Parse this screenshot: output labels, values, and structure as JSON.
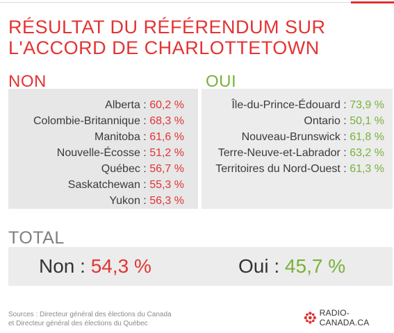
{
  "chart_data": {
    "type": "table",
    "title": "RÉSULTAT DU RÉFÉRENDUM SUR L'ACCORD DE CHARLOTTETOWN",
    "title_lines": [
      "RÉSULTAT DU RÉFÉRENDUM SUR",
      "L'ACCORD DE CHARLOTTETOWN"
    ],
    "groups": [
      {
        "name": "NON",
        "color": "#e33333",
        "rows": [
          {
            "province": "Alberta",
            "value": "60,2 %"
          },
          {
            "province": "Colombie-Britannique",
            "value": "68,3 %"
          },
          {
            "province": "Manitoba",
            "value": "61,6 %"
          },
          {
            "province": "Nouvelle-Écosse",
            "value": "51,2 %"
          },
          {
            "province": "Québec",
            "value": "56,7 %"
          },
          {
            "province": "Saskatchewan",
            "value": "55,3 %"
          },
          {
            "province": "Yukon",
            "value": "56,3 %"
          }
        ]
      },
      {
        "name": "OUI",
        "color": "#78b13a",
        "rows": [
          {
            "province": "Île-du-Prince-Édouard",
            "value": "73,9 %"
          },
          {
            "province": "Ontario",
            "value": "50,1 %"
          },
          {
            "province": "Nouveau-Brunswick",
            "value": "61,8 %"
          },
          {
            "province": "Terre-Neuve-et-Labrador",
            "value": "63,2 %"
          },
          {
            "province": "Territoires du Nord-Ouest",
            "value": "61,3 %"
          }
        ]
      }
    ],
    "total": {
      "label": "TOTAL",
      "non_label": "Non",
      "non_value": "54,3 %",
      "oui_label": "Oui",
      "oui_value": "45,7 %"
    }
  },
  "footer": {
    "sources_line1": "Sources : Directeur général des élections du Canada",
    "sources_line2": "et Directeur général des élections du Québec",
    "logo_text": "RADIO-CANADA.CA",
    "logo_icon": "radio-canada-gem-icon",
    "brand_color": "#e02f2f"
  }
}
